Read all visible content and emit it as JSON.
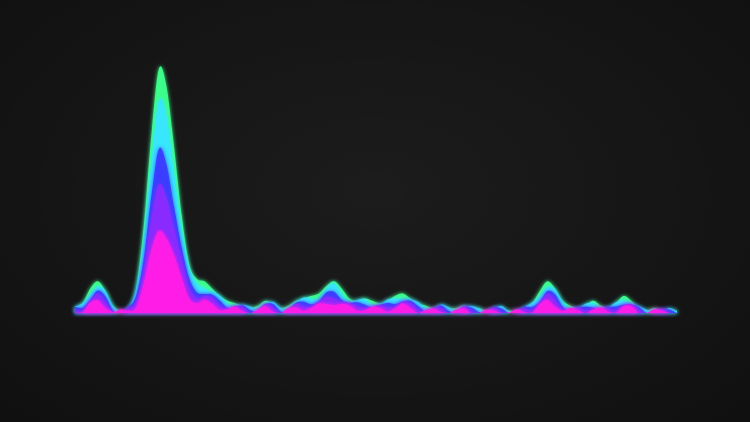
{
  "visualizer": {
    "background": "#161616",
    "layers": [
      {
        "name": "outer",
        "color": "#3dff8a",
        "glow": "#3dff8a",
        "scale": 1.0
      },
      {
        "name": "cyan",
        "color": "#37e6ff",
        "glow": "#37e6ff",
        "scale": 0.86
      },
      {
        "name": "blue",
        "color": "#3a3cff",
        "glow": "#3a3cff",
        "scale": 0.66
      },
      {
        "name": "violet",
        "color": "#8a2cff",
        "glow": "#8a2cff",
        "scale": 0.52
      },
      {
        "name": "magenta",
        "color": "#ff1ee6",
        "glow": "#ff1ee6",
        "scale": 0.34
      }
    ],
    "baseline_color": "#ff2bd8",
    "spectrum": [
      0.02,
      0.04,
      0.1,
      0.13,
      0.09,
      0.03,
      0.01,
      0.02,
      0.1,
      0.35,
      0.72,
      1.0,
      0.93,
      0.68,
      0.4,
      0.2,
      0.14,
      0.13,
      0.1,
      0.07,
      0.05,
      0.04,
      0.03,
      0.02,
      0.03,
      0.05,
      0.04,
      0.02,
      0.03,
      0.05,
      0.06,
      0.07,
      0.08,
      0.11,
      0.13,
      0.1,
      0.06,
      0.05,
      0.06,
      0.05,
      0.04,
      0.05,
      0.07,
      0.08,
      0.06,
      0.04,
      0.03,
      0.02,
      0.03,
      0.02,
      0.02,
      0.03,
      0.02,
      0.02,
      0.01,
      0.02,
      0.02,
      0.01,
      0.01,
      0.02,
      0.04,
      0.09,
      0.13,
      0.1,
      0.05,
      0.03,
      0.02,
      0.03,
      0.05,
      0.03,
      0.02,
      0.04,
      0.07,
      0.05,
      0.02,
      0.01,
      0.02,
      0.01,
      0.01,
      0.01
    ]
  }
}
